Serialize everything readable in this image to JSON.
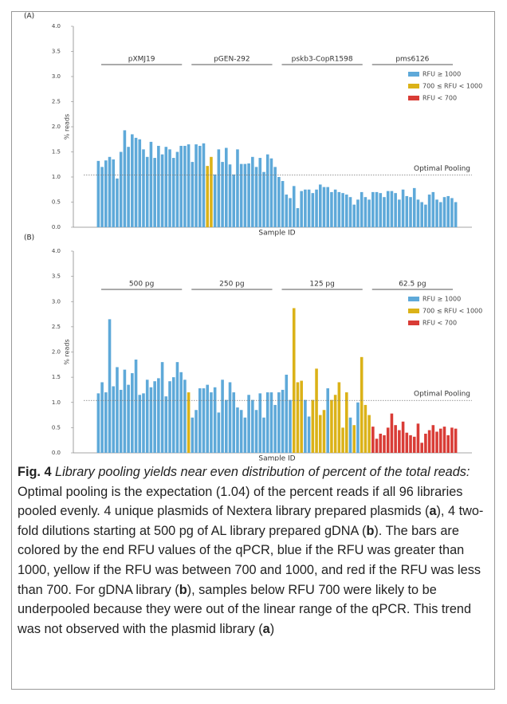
{
  "chart_data": [
    {
      "type": "bar",
      "panel_label": "(A)",
      "xlabel": "Sample ID",
      "ylabel": "% reads",
      "ylim": [
        0,
        4
      ],
      "yticks": [
        {
          "value": 0,
          "label": "0.0"
        },
        {
          "value": 0.5,
          "label": "0.5"
        },
        {
          "value": 1,
          "label": "1.0"
        },
        {
          "value": 1.5,
          "label": "1.5"
        },
        {
          "value": 2,
          "label": "2.0"
        },
        {
          "value": 2.5,
          "label": "2.5"
        },
        {
          "value": 3,
          "label": "3.0"
        },
        {
          "value": 3.5,
          "label": "3.5"
        },
        {
          "value": 4,
          "label": "4.0"
        }
      ],
      "group_labels": [
        "pXMJ19",
        "pGEN-292",
        "pskb3-CopR1598",
        "pms6126"
      ],
      "reference_line": {
        "value": 1.04,
        "label": "Optimal Pooling"
      },
      "legend": [
        {
          "name": "RFU ≥ 1000",
          "color": "#5ea9d9"
        },
        {
          "name": "700 ≤ RFU < 1000",
          "color": "#dbb218"
        },
        {
          "name": "RFU < 700",
          "color": "#d93c36"
        }
      ],
      "values": [
        1.32,
        1.2,
        1.33,
        1.4,
        1.35,
        0.97,
        1.5,
        1.93,
        1.6,
        1.85,
        1.78,
        1.75,
        1.55,
        1.4,
        1.7,
        1.38,
        1.62,
        1.45,
        1.6,
        1.55,
        1.38,
        1.5,
        1.62,
        1.62,
        1.65,
        1.3,
        1.65,
        1.62,
        1.67,
        1.22,
        1.4,
        1.05,
        1.55,
        1.3,
        1.58,
        1.25,
        1.05,
        1.55,
        1.26,
        1.26,
        1.27,
        1.4,
        1.2,
        1.38,
        1.1,
        1.45,
        1.37,
        1.2,
        1.0,
        0.92,
        0.65,
        0.58,
        0.82,
        0.38,
        0.72,
        0.75,
        0.75,
        0.68,
        0.75,
        0.85,
        0.8,
        0.8,
        0.7,
        0.75,
        0.7,
        0.68,
        0.65,
        0.6,
        0.45,
        0.55,
        0.7,
        0.6,
        0.55,
        0.7,
        0.7,
        0.68,
        0.6,
        0.72,
        0.72,
        0.68,
        0.55,
        0.75,
        0.62,
        0.6,
        0.78,
        0.55,
        0.5,
        0.45,
        0.65,
        0.7,
        0.55,
        0.5,
        0.6,
        0.62,
        0.58,
        0.5
      ],
      "bar_class": [
        0,
        0,
        0,
        0,
        0,
        0,
        0,
        0,
        0,
        0,
        0,
        0,
        0,
        0,
        0,
        0,
        0,
        0,
        0,
        0,
        0,
        0,
        0,
        0,
        0,
        0,
        0,
        0,
        0,
        1,
        1,
        0,
        0,
        0,
        0,
        0,
        0,
        0,
        0,
        0,
        0,
        0,
        0,
        0,
        0,
        0,
        0,
        0,
        0,
        0,
        0,
        0,
        0,
        0,
        0,
        0,
        0,
        0,
        0,
        0,
        0,
        0,
        0,
        0,
        0,
        0,
        0,
        0,
        0,
        0,
        0,
        0,
        0,
        0,
        0,
        0,
        0,
        0,
        0,
        0,
        0,
        0,
        0,
        0,
        0,
        0,
        0,
        0,
        0,
        0,
        0,
        0,
        0,
        0,
        0,
        0
      ]
    },
    {
      "type": "bar",
      "panel_label": "(B)",
      "xlabel": "Sample ID",
      "ylabel": "% reads",
      "ylim": [
        0,
        4
      ],
      "yticks": [
        {
          "value": 0,
          "label": "0.0"
        },
        {
          "value": 0.5,
          "label": "0.5"
        },
        {
          "value": 1,
          "label": "1.0"
        },
        {
          "value": 1.5,
          "label": "1.5"
        },
        {
          "value": 2,
          "label": "2.0"
        },
        {
          "value": 2.5,
          "label": "2.5"
        },
        {
          "value": 3,
          "label": "3.0"
        },
        {
          "value": 3.5,
          "label": "3.5"
        },
        {
          "value": 4,
          "label": "4.0"
        }
      ],
      "group_labels": [
        "500 pg",
        "250 pg",
        "125 pg",
        "62.5 pg"
      ],
      "reference_line": {
        "value": 1.04,
        "label": "Optimal Pooling"
      },
      "legend": [
        {
          "name": "RFU ≥ 1000",
          "color": "#5ea9d9"
        },
        {
          "name": "700 ≤ RFU < 1000",
          "color": "#dbb218"
        },
        {
          "name": "RFU < 700",
          "color": "#d93c36"
        }
      ],
      "values": [
        1.18,
        1.4,
        1.2,
        2.65,
        1.32,
        1.7,
        1.25,
        1.65,
        1.35,
        1.58,
        1.85,
        1.15,
        1.18,
        1.45,
        1.3,
        1.42,
        1.48,
        1.8,
        1.12,
        1.42,
        1.5,
        1.8,
        1.6,
        1.45,
        1.2,
        0.7,
        0.85,
        1.28,
        1.28,
        1.35,
        1.2,
        1.3,
        0.8,
        1.45,
        1.05,
        1.4,
        1.2,
        0.9,
        0.85,
        0.7,
        1.15,
        1.05,
        0.85,
        1.18,
        0.7,
        1.2,
        1.2,
        0.95,
        1.2,
        1.25,
        1.55,
        1.05,
        2.87,
        1.4,
        1.43,
        1.05,
        0.72,
        1.05,
        1.67,
        0.75,
        0.85,
        1.28,
        1.05,
        1.15,
        1.4,
        0.5,
        1.2,
        0.7,
        0.55,
        1.0,
        1.9,
        0.95,
        0.75,
        0.52,
        0.28,
        0.38,
        0.35,
        0.5,
        0.78,
        0.55,
        0.45,
        0.62,
        0.4,
        0.35,
        0.32,
        0.58,
        0.2,
        0.38,
        0.45,
        0.55,
        0.42,
        0.48,
        0.52,
        0.35,
        0.5,
        0.48
      ],
      "bar_class": [
        0,
        0,
        0,
        0,
        0,
        0,
        0,
        0,
        0,
        0,
        0,
        0,
        0,
        0,
        0,
        0,
        0,
        0,
        0,
        0,
        0,
        0,
        0,
        0,
        1,
        0,
        0,
        0,
        0,
        0,
        0,
        0,
        0,
        0,
        0,
        0,
        0,
        0,
        0,
        0,
        0,
        0,
        0,
        0,
        0,
        0,
        0,
        0,
        0,
        0,
        0,
        0,
        1,
        1,
        1,
        0,
        0,
        1,
        1,
        1,
        1,
        0,
        1,
        1,
        1,
        1,
        1,
        0,
        1,
        0,
        1,
        1,
        1,
        2,
        2,
        2,
        2,
        2,
        2,
        2,
        2,
        2,
        2,
        2,
        2,
        2,
        2,
        2,
        2,
        2,
        2,
        2,
        2,
        2,
        2,
        2
      ]
    }
  ],
  "caption": [
    {
      "text": "Fig. 4",
      "style": "bold"
    },
    {
      "text": " Library pooling yields near even distribution of percent of the total reads:",
      "style": "italic"
    },
    {
      "text": " Optimal pooling is the expectation (1.04) of the percent reads if all 96 libraries pooled evenly. 4 unique plasmids of Nextera library prepared plasmids (",
      "style": "normal"
    },
    {
      "text": "a",
      "style": "bold"
    },
    {
      "text": "), 4 two-fold dilutions starting at 500 pg of AL library prepared gDNA (",
      "style": "normal"
    },
    {
      "text": "b",
      "style": "bold"
    },
    {
      "text": "). The bars are colored by the end RFU values of the qPCR, blue if the RFU was greater than 1000, yellow if the RFU was between 700 and 1000, and red if the RFU was less than 700. For gDNA library (",
      "style": "normal"
    },
    {
      "text": "b",
      "style": "bold"
    },
    {
      "text": "), samples below RFU 700 were likely to be underpooled because they were out of the linear range of the qPCR. This trend was not observed with the plasmid library (",
      "style": "normal"
    },
    {
      "text": "a",
      "style": "bold"
    },
    {
      "text": ")",
      "style": "normal"
    }
  ]
}
